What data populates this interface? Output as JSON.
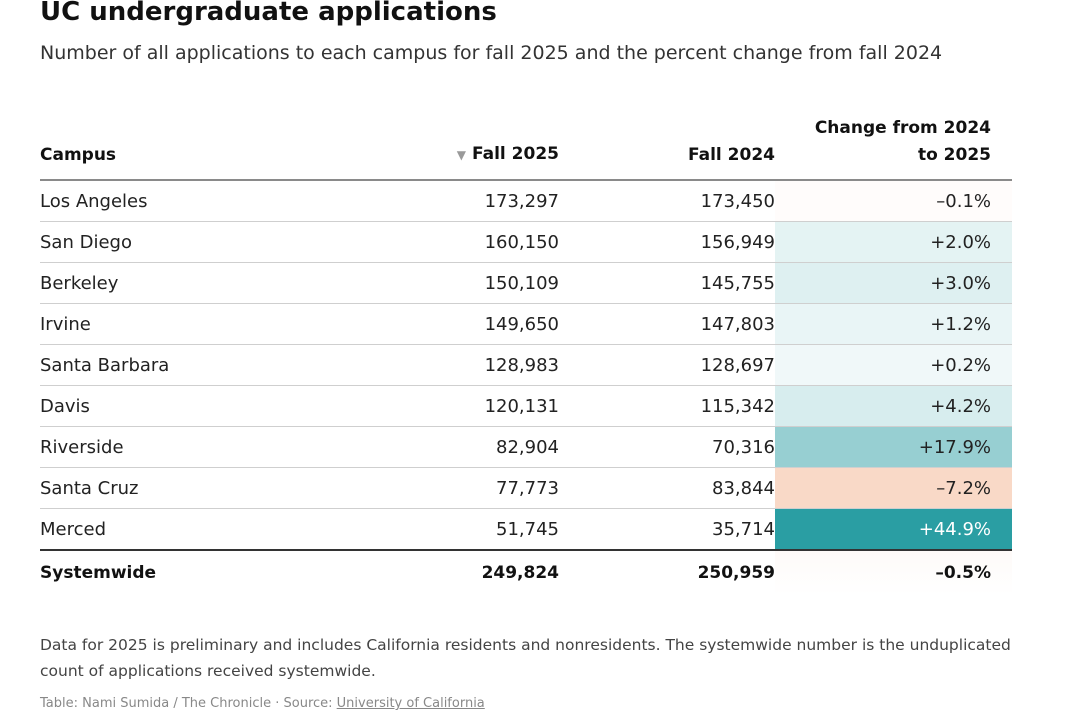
{
  "title": "UC undergraduate applications",
  "subtitle": "Number of all applications to each campus for fall 2025 and the percent change from fall 2024",
  "headers": {
    "campus": "Campus",
    "fall2025": "Fall 2025",
    "fall2024": "Fall 2024",
    "change_line1": "Change from 2024",
    "change_line2": "to 2025",
    "sort_icon": "▼"
  },
  "total": {
    "campus": "Systemwide",
    "fall2025": "249,824",
    "fall2024": "250,959",
    "change": "–0.5%",
    "change_value": -0.5
  },
  "note": "Data for 2025 is preliminary and includes California residents and nonresidents. The systemwide number is the unduplicated count of applications received systemwide.",
  "credit_prefix": "Table: Nami Sumida / The Chronicle · Source: ",
  "credit_link": "University of California",
  "colors": {
    "positive": "#2a9ea3",
    "negative": "#f4b896",
    "text_dark_bg": "#ffffff"
  },
  "chart_data": {
    "type": "table",
    "title": "UC undergraduate applications",
    "subtitle": "Number of all applications to each campus for fall 2025 and the percent change from fall 2024",
    "columns": [
      "Campus",
      "Fall 2025",
      "Fall 2024",
      "Change from 2024 to 2025"
    ],
    "sorted_by": "Fall 2025",
    "rows": [
      {
        "campus": "Los Angeles",
        "fall2025": "173,297",
        "fall2024": "173,450",
        "change": "–0.1%",
        "change_value": -0.1
      },
      {
        "campus": "San Diego",
        "fall2025": "160,150",
        "fall2024": "156,949",
        "change": "+2.0%",
        "change_value": 2.0
      },
      {
        "campus": "Berkeley",
        "fall2025": "150,109",
        "fall2024": "145,755",
        "change": "+3.0%",
        "change_value": 3.0
      },
      {
        "campus": "Irvine",
        "fall2025": "149,650",
        "fall2024": "147,803",
        "change": "+1.2%",
        "change_value": 1.2
      },
      {
        "campus": "Santa Barbara",
        "fall2025": "128,983",
        "fall2024": "128,697",
        "change": "+0.2%",
        "change_value": 0.2
      },
      {
        "campus": "Davis",
        "fall2025": "120,131",
        "fall2024": "115,342",
        "change": "+4.2%",
        "change_value": 4.2
      },
      {
        "campus": "Riverside",
        "fall2025": "82,904",
        "fall2024": "70,316",
        "change": "+17.9%",
        "change_value": 17.9
      },
      {
        "campus": "Santa Cruz",
        "fall2025": "77,773",
        "fall2024": "83,844",
        "change": "–7.2%",
        "change_value": -7.2
      },
      {
        "campus": "Merced",
        "fall2025": "51,745",
        "fall2024": "35,714",
        "change": "+44.9%",
        "change_value": 44.9
      }
    ]
  }
}
